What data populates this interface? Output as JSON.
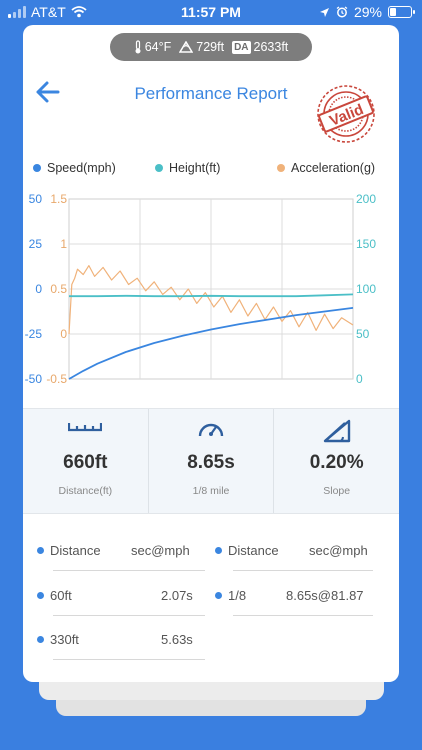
{
  "status_bar": {
    "carrier": "AT&T",
    "time": "11:57 PM",
    "battery": "29%",
    "battery_level": 0.29,
    "icons": [
      "signal-bars-icon",
      "wifi-icon",
      "location-arrow-icon",
      "alarm-icon",
      "battery-icon"
    ]
  },
  "conditions": {
    "temperature": "64°F",
    "elevation": "729ft",
    "density_altitude_badge": "DA",
    "density_altitude": "2633ft",
    "icons": [
      "thermometer-icon",
      "mountain-icon"
    ]
  },
  "header": {
    "title": "Performance Report",
    "stamp_text": "Valid",
    "stamp_color": "#c9473c",
    "icons": [
      "back-arrow-icon",
      "valid-stamp-icon"
    ]
  },
  "chart_data": {
    "type": "line",
    "x_range": [
      0,
      1
    ],
    "series": [
      {
        "name": "Speed(mph)",
        "color": "#3a86e0",
        "axis": "right",
        "x": [
          0,
          0.05,
          0.1,
          0.2,
          0.3,
          0.4,
          0.5,
          0.6,
          0.7,
          0.8,
          0.9,
          1.0
        ],
        "y": [
          0,
          9,
          17,
          30,
          40,
          48,
          55,
          61,
          66,
          71,
          75,
          79
        ]
      },
      {
        "name": "Height(ft)",
        "color": "#4bbfc7",
        "axis": "right",
        "x": [
          0,
          0.1,
          0.2,
          0.3,
          0.4,
          0.5,
          0.6,
          0.7,
          0.8,
          0.9,
          1.0
        ],
        "y": [
          92,
          92,
          92.5,
          92,
          92,
          92.5,
          92,
          92,
          92,
          93,
          94
        ]
      },
      {
        "name": "Acceleration(g)",
        "color": "#f0b27a",
        "axis": "left_inner",
        "x": [
          0,
          0.01,
          0.02,
          0.03,
          0.05,
          0.07,
          0.09,
          0.12,
          0.15,
          0.18,
          0.21,
          0.24,
          0.27,
          0.3,
          0.33,
          0.36,
          0.39,
          0.42,
          0.45,
          0.48,
          0.51,
          0.54,
          0.57,
          0.6,
          0.63,
          0.66,
          0.69,
          0.72,
          0.75,
          0.78,
          0.81,
          0.84,
          0.87,
          0.9,
          0.93,
          0.96,
          1.0
        ],
        "y": [
          0,
          0.55,
          0.62,
          0.72,
          0.66,
          0.76,
          0.64,
          0.74,
          0.6,
          0.7,
          0.55,
          0.62,
          0.48,
          0.58,
          0.44,
          0.52,
          0.38,
          0.5,
          0.34,
          0.46,
          0.3,
          0.42,
          0.24,
          0.38,
          0.2,
          0.34,
          0.16,
          0.3,
          0.14,
          0.26,
          0.08,
          0.24,
          0.04,
          0.22,
          0.06,
          0.18,
          0.1
        ]
      }
    ],
    "axes": {
      "outer_left": {
        "ticks": [
          "50",
          "25",
          "0",
          "-25",
          "-50"
        ],
        "range": [
          -50,
          50
        ]
      },
      "inner_left": {
        "ticks": [
          "1.5",
          "1",
          "0.5",
          "0",
          "-0.5"
        ],
        "range": [
          -0.5,
          1.5
        ]
      },
      "right": {
        "ticks": [
          "200",
          "150",
          "100",
          "50",
          "0"
        ],
        "range": [
          0,
          200
        ]
      }
    },
    "grid": true,
    "legend": "top"
  },
  "metrics": [
    {
      "value": "660ft",
      "label": "Distance(ft)",
      "icon": "ruler-icon"
    },
    {
      "value": "8.65s",
      "label": "1/8 mile",
      "icon": "speedometer-icon"
    },
    {
      "value": "0.20%",
      "label": "Slope",
      "icon": "slope-icon"
    }
  ],
  "results": {
    "headers": [
      {
        "name": "Distance",
        "value": "sec@mph"
      },
      {
        "name": "Distance",
        "value": "sec@mph"
      }
    ],
    "rows": [
      {
        "name": "60ft",
        "value": "2.07s"
      },
      {
        "name": "1/8",
        "value": "8.65s@81.87"
      },
      {
        "name": "330ft",
        "value": "5.63s"
      }
    ],
    "accent": "#3b86e0"
  }
}
